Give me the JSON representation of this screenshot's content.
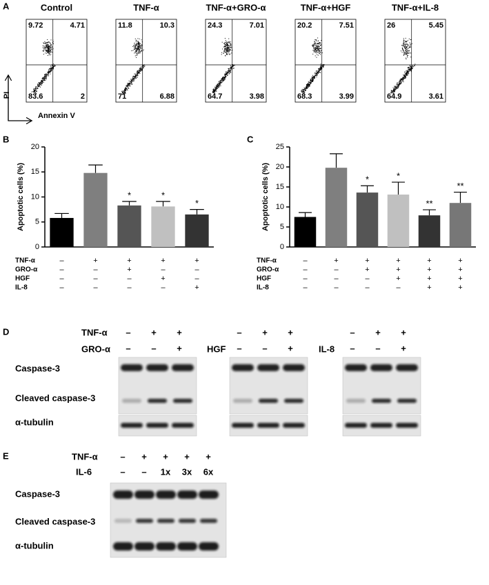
{
  "panel_a": {
    "label": "A",
    "y_axis": "PI",
    "x_axis": "Annexin V",
    "plots": [
      {
        "title": "Control",
        "upper_left": 9.72,
        "upper_right": 4.71,
        "lower_left": 83.6,
        "lower_right": 2
      },
      {
        "title": "TNF-α",
        "upper_left": 11.8,
        "upper_right": 10.3,
        "lower_left": 71,
        "lower_right": 6.88
      },
      {
        "title": "TNF-α+GRO-α",
        "upper_left": 24.3,
        "upper_right": 7.01,
        "lower_left": 64.7,
        "lower_right": 3.98
      },
      {
        "title": "TNF-α+HGF",
        "upper_left": 20.2,
        "upper_right": 7.51,
        "lower_left": 68.3,
        "lower_right": 3.99
      },
      {
        "title": "TNF-α+IL-8",
        "upper_left": 26,
        "upper_right": 5.45,
        "lower_left": 64.9,
        "lower_right": 3.61
      }
    ]
  },
  "chart_data": [
    {
      "type": "bar",
      "label": "B",
      "y_label": "Apoptotic cells (%)",
      "values": [
        5.8,
        14.8,
        8.3,
        8.1,
        6.5
      ],
      "errors": [
        0.9,
        1.6,
        0.8,
        1.0,
        1.0
      ],
      "colors": [
        "#000000",
        "#7f7f7f",
        "#555555",
        "#c0c0c0",
        "#333333"
      ],
      "annotations": [
        null,
        null,
        "*",
        "*",
        "*"
      ],
      "ylim": [
        0,
        20
      ],
      "yticks": [
        0,
        5,
        10,
        15,
        20
      ],
      "treatments": [
        {
          "name": "TNF-α",
          "signs": [
            "–",
            "+",
            "+",
            "+",
            "+"
          ]
        },
        {
          "name": "GRO-α",
          "signs": [
            "–",
            "–",
            "+",
            "–",
            "–"
          ]
        },
        {
          "name": "HGF",
          "signs": [
            "–",
            "–",
            "–",
            "+",
            "–"
          ]
        },
        {
          "name": "IL-8",
          "signs": [
            "–",
            "–",
            "–",
            "–",
            "+"
          ]
        }
      ]
    },
    {
      "type": "bar",
      "label": "C",
      "y_label": "Apoptotic cells (%)",
      "values": [
        7.5,
        19.8,
        13.6,
        13.1,
        7.9,
        11.0
      ],
      "errors": [
        1.1,
        3.5,
        1.7,
        3.1,
        1.4,
        2.7
      ],
      "colors": [
        "#000000",
        "#7f7f7f",
        "#555555",
        "#c0c0c0",
        "#333333",
        "#777777"
      ],
      "annotations": [
        null,
        null,
        "*",
        "*",
        "**",
        "**"
      ],
      "ylim": [
        0,
        25
      ],
      "yticks": [
        0,
        5,
        10,
        15,
        20,
        25
      ],
      "treatments": [
        {
          "name": "TNF-α",
          "signs": [
            "–",
            "+",
            "+",
            "+",
            "+",
            "+"
          ]
        },
        {
          "name": "GRO-α",
          "signs": [
            "–",
            "–",
            "+",
            "+",
            "+",
            "+"
          ]
        },
        {
          "name": "HGF",
          "signs": [
            "–",
            "–",
            "–",
            "+",
            "+",
            "+"
          ]
        },
        {
          "name": "IL-8",
          "signs": [
            "–",
            "–",
            "–",
            "–",
            "+",
            "+"
          ]
        }
      ]
    }
  ],
  "panel_d": {
    "label": "D",
    "treatment": "TNF-α",
    "groups": [
      {
        "agent": "GRO-α",
        "tnf_signs": [
          "–",
          "+",
          "+"
        ],
        "agent_signs": [
          "–",
          "–",
          "+"
        ]
      },
      {
        "agent": "HGF",
        "tnf_signs": [
          "–",
          "+",
          "+"
        ],
        "agent_signs": [
          "–",
          "–",
          "+"
        ]
      },
      {
        "agent": "IL-8",
        "tnf_signs": [
          "–",
          "+",
          "+"
        ],
        "agent_signs": [
          "–",
          "–",
          "+"
        ]
      }
    ],
    "rows": [
      "Caspase-3",
      "Cleaved caspase-3",
      "α-tubulin"
    ]
  },
  "panel_e": {
    "label": "E",
    "treatment": "TNF-α",
    "tnf_signs": [
      "–",
      "+",
      "+",
      "+",
      "+"
    ],
    "agent": "IL-6",
    "agent_signs": [
      "–",
      "–",
      "1x",
      "3x",
      "6x"
    ],
    "rows": [
      "Caspase-3",
      "Cleaved caspase-3",
      "α-tubulin"
    ]
  }
}
